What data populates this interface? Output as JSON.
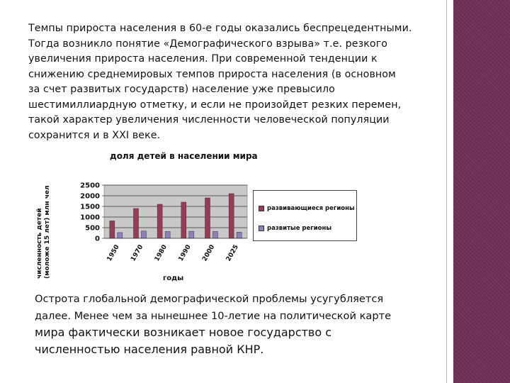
{
  "text": {
    "top_lines": [
      "Темпы прироста населения в 60-е годы оказались беспрецедентными.",
      "Тогда возникло понятие «Демографического взрыва» т.е. резкого",
      "увеличения прироста населения. При современной тенденции к",
      "снижению среднемировых темпов прироста населения (в основном",
      "за счет развитых государств) население уже превысило",
      "шестимиллиардную отметку, и если не произойдет резких перемен,",
      "такой характер увеличения численности человеческой популяции",
      "сохранится и в XXI веке."
    ],
    "bottom_lines": [
      "Острота глобальной демографической проблемы усугубляется",
      "далее. Менее чем за нынешнее 10-летие  на политической карте",
      "мира фактически возникает новое государство с",
      "численностью населения равной КНР."
    ]
  },
  "chart_data": {
    "type": "bar",
    "title": "доля детей в населении мира",
    "ylabel_line1": "численность детей",
    "ylabel_line2": "(моложе 15 лет) млн чел",
    "xlabel": "годы",
    "categories": [
      "1950",
      "1970",
      "1980",
      "1990",
      "2000",
      "2025"
    ],
    "yticks": [
      "0",
      "500",
      "1000",
      "1500",
      "2000",
      "2500"
    ],
    "ylim": [
      0,
      2500
    ],
    "grid": true,
    "legend_position": "right",
    "series": [
      {
        "name": "развивающиеся регионы",
        "color": "#9b3a56",
        "values": [
          820,
          1400,
          1600,
          1700,
          1900,
          2100
        ]
      },
      {
        "name": "развитые регионы",
        "color": "#8f7fc0",
        "values": [
          270,
          340,
          320,
          330,
          320,
          290
        ]
      }
    ]
  },
  "colors": {
    "side_band": "#6e3057",
    "plot_bg": "#c8c8c8",
    "text": "#111111"
  }
}
